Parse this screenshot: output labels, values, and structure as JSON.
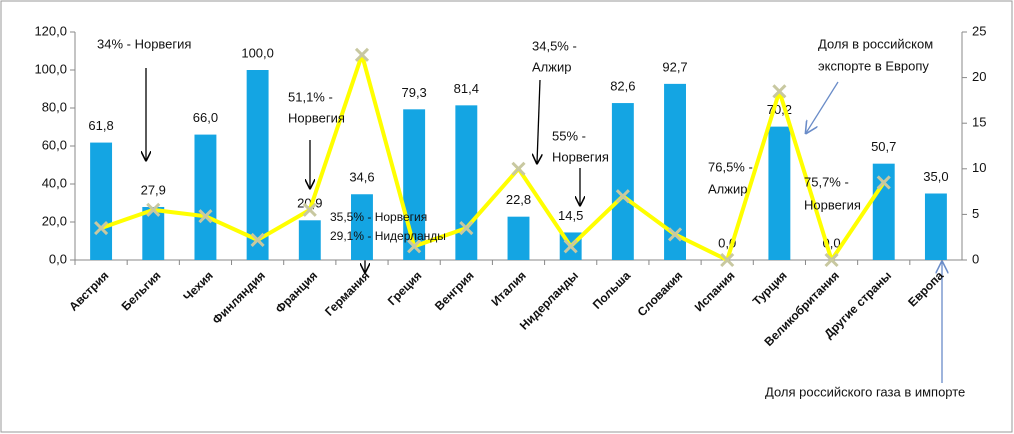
{
  "chart_data": {
    "type": "bar-line",
    "categories": [
      "Австрия",
      "Бельгия",
      "Чехия",
      "Финляндия",
      "Франция",
      "Германия",
      "Греция",
      "Венгрия",
      "Италия",
      "Нидерланды",
      "Польша",
      "Словакия",
      "Испания",
      "Турция",
      "Великобритания",
      "Другие страны",
      "Европа"
    ],
    "series": [
      {
        "type": "bar",
        "color": "#14a5e3",
        "values": [
          61.8,
          27.9,
          66.0,
          100.0,
          20.9,
          34.6,
          79.3,
          81.4,
          22.8,
          14.5,
          82.6,
          92.7,
          0.0,
          70.2,
          0.0,
          50.7,
          35.0
        ],
        "value_labels": [
          "61,8",
          "27,9",
          "66,0",
          "100,0",
          "20,9",
          "34,6",
          "79,3",
          "81,4",
          "22,8",
          "14,5",
          "82,6",
          "92,7",
          "0,0",
          "70,2",
          "0,0",
          "50,7",
          "35,0"
        ]
      },
      {
        "type": "line",
        "axis": "y2",
        "color": "#ffff00",
        "marker_color": "#c8c8a0",
        "values": [
          3.5,
          5.5,
          4.8,
          2.2,
          5.5,
          22.5,
          1.5,
          3.5,
          10,
          1.5,
          7,
          2.8,
          0,
          18.5,
          0,
          8.5,
          null
        ]
      }
    ],
    "ylim": [
      0,
      120
    ],
    "yticks": [
      {
        "value": 0,
        "label": "0,0"
      },
      {
        "value": 20,
        "label": "20,0"
      },
      {
        "value": 40,
        "label": "40,0"
      },
      {
        "value": 60,
        "label": "60,0"
      },
      {
        "value": 80,
        "label": "80,0"
      },
      {
        "value": 100,
        "label": "100,0"
      },
      {
        "value": 120,
        "label": "120,0"
      }
    ],
    "y2lim": [
      0,
      25
    ],
    "y2ticks": [
      0,
      5,
      10,
      15,
      20,
      25
    ],
    "annotations": [
      [
        "34% - Норвегия"
      ],
      [
        "51,1% -",
        "Норвегия"
      ],
      [
        "35,5% - Норвегия",
        "29,1% - Нидерланды"
      ],
      [
        "34,5% -",
        "Алжир"
      ],
      [
        "55% -",
        "Норвегия"
      ],
      [
        "76,5% -",
        "Алжир"
      ],
      [
        "75,7% -",
        "Норвегия"
      ],
      [
        "Доля в российском",
        "экспорте в Европу"
      ],
      [
        "Доля российского газа в импорте"
      ]
    ]
  }
}
